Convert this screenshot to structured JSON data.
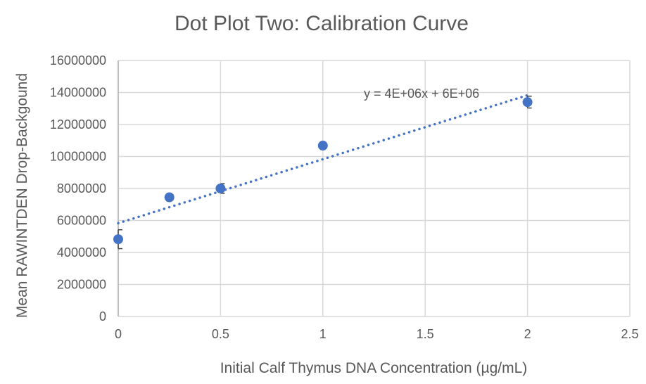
{
  "chart_data": {
    "type": "scatter",
    "title": "Dot Plot Two: Calibration Curve",
    "xlabel": "Initial Calf Thymus DNA Concentration (µg/mL)",
    "ylabel": "Mean RAWINTDEN Drop-Backgound",
    "xlim": [
      0,
      2.5
    ],
    "ylim": [
      0,
      16000000
    ],
    "x_ticks": [
      0,
      0.5,
      1,
      1.5,
      2,
      2.5
    ],
    "x_tick_labels": [
      "0",
      "0.5",
      "1",
      "1.5",
      "2",
      "2.5"
    ],
    "y_ticks": [
      0,
      2000000,
      4000000,
      6000000,
      8000000,
      10000000,
      12000000,
      14000000,
      16000000
    ],
    "y_tick_labels": [
      "0",
      "2000000",
      "4000000",
      "6000000",
      "8000000",
      "10000000",
      "12000000",
      "14000000",
      "16000000"
    ],
    "grid": true,
    "series": [
      {
        "name": "Mean RAWINTDEN",
        "x": [
          0,
          0.25,
          0.5,
          1,
          2
        ],
        "y": [
          4830000,
          7450000,
          8000000,
          10680000,
          13400000
        ],
        "error": [
          590000,
          150000,
          300000,
          100000,
          370000
        ],
        "color": "#4472C4"
      }
    ],
    "trendline": {
      "type": "linear",
      "slope": 4000000,
      "intercept": 5830000,
      "x_range": [
        0,
        2
      ],
      "equation": "y = 4E+06x + 6E+06",
      "color": "#4472C4"
    }
  }
}
